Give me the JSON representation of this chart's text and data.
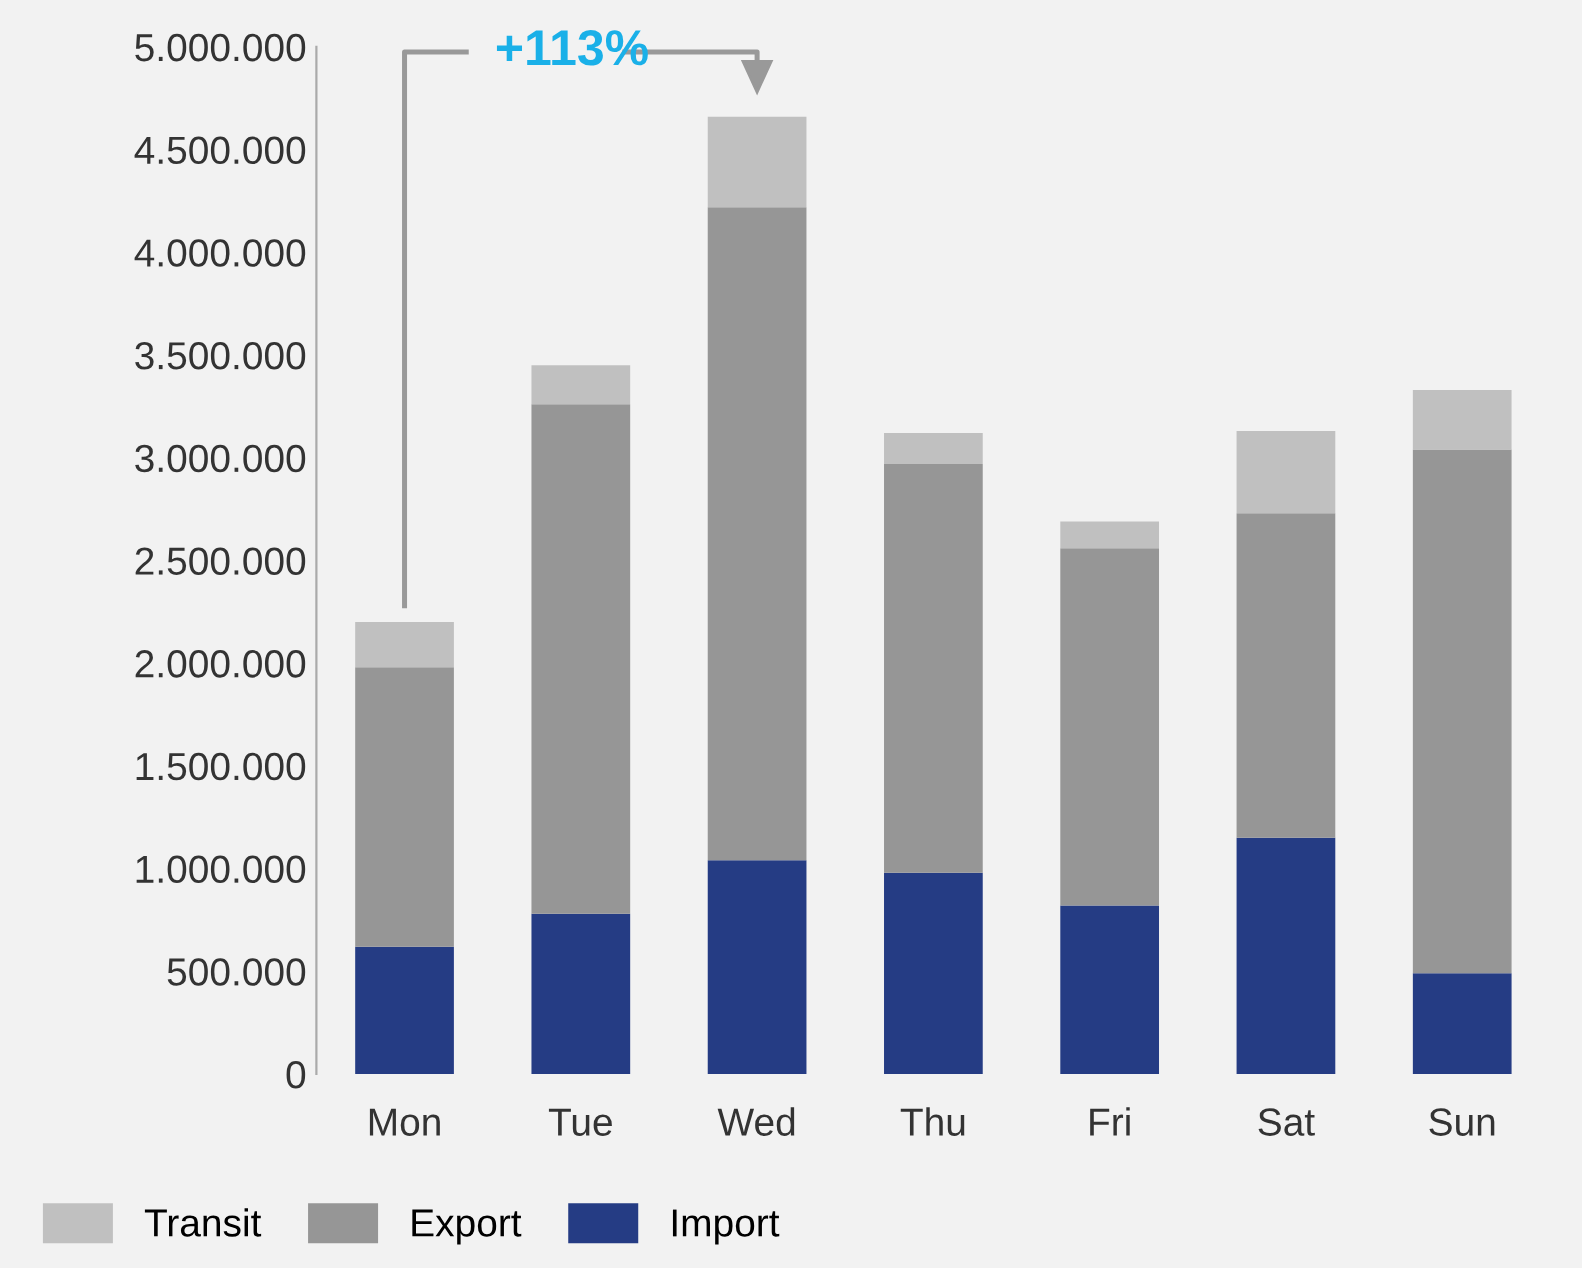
{
  "chart_data": {
    "type": "bar",
    "stacked": true,
    "categories": [
      "Mon",
      "Tue",
      "Wed",
      "Thu",
      "Fri",
      "Sat",
      "Sun"
    ],
    "series": [
      {
        "name": "Import",
        "color": "#253c84",
        "values": [
          620000,
          780000,
          1040000,
          980000,
          820000,
          1150000,
          490000
        ]
      },
      {
        "name": "Export",
        "color": "#969696",
        "values": [
          1360000,
          2480000,
          3180000,
          1990000,
          1740000,
          1580000,
          2550000
        ]
      },
      {
        "name": "Transit",
        "color": "#c0c0c0",
        "values": [
          220000,
          190000,
          440000,
          150000,
          130000,
          400000,
          290000
        ]
      }
    ],
    "ylim": [
      0,
      5000000
    ],
    "yticks": [
      0,
      {
        "value": 500000,
        "label": "500.000"
      },
      {
        "value": 1000000,
        "label": "1.000.000"
      },
      {
        "value": 1500000,
        "label": "1.500.000"
      },
      {
        "value": 2000000,
        "label": "2.000.000"
      },
      {
        "value": 2500000,
        "label": "2.500.000"
      },
      {
        "value": 3000000,
        "label": "3.000.000"
      },
      {
        "value": 3500000,
        "label": "3.500.000"
      },
      {
        "value": 4000000,
        "label": "4.000.000"
      },
      {
        "value": 4500000,
        "label": "4.500.000"
      },
      {
        "value": 5000000,
        "label": "5.000.000"
      }
    ],
    "annotations": [
      "+113%"
    ],
    "grid": false,
    "legend": "bottom left"
  }
}
